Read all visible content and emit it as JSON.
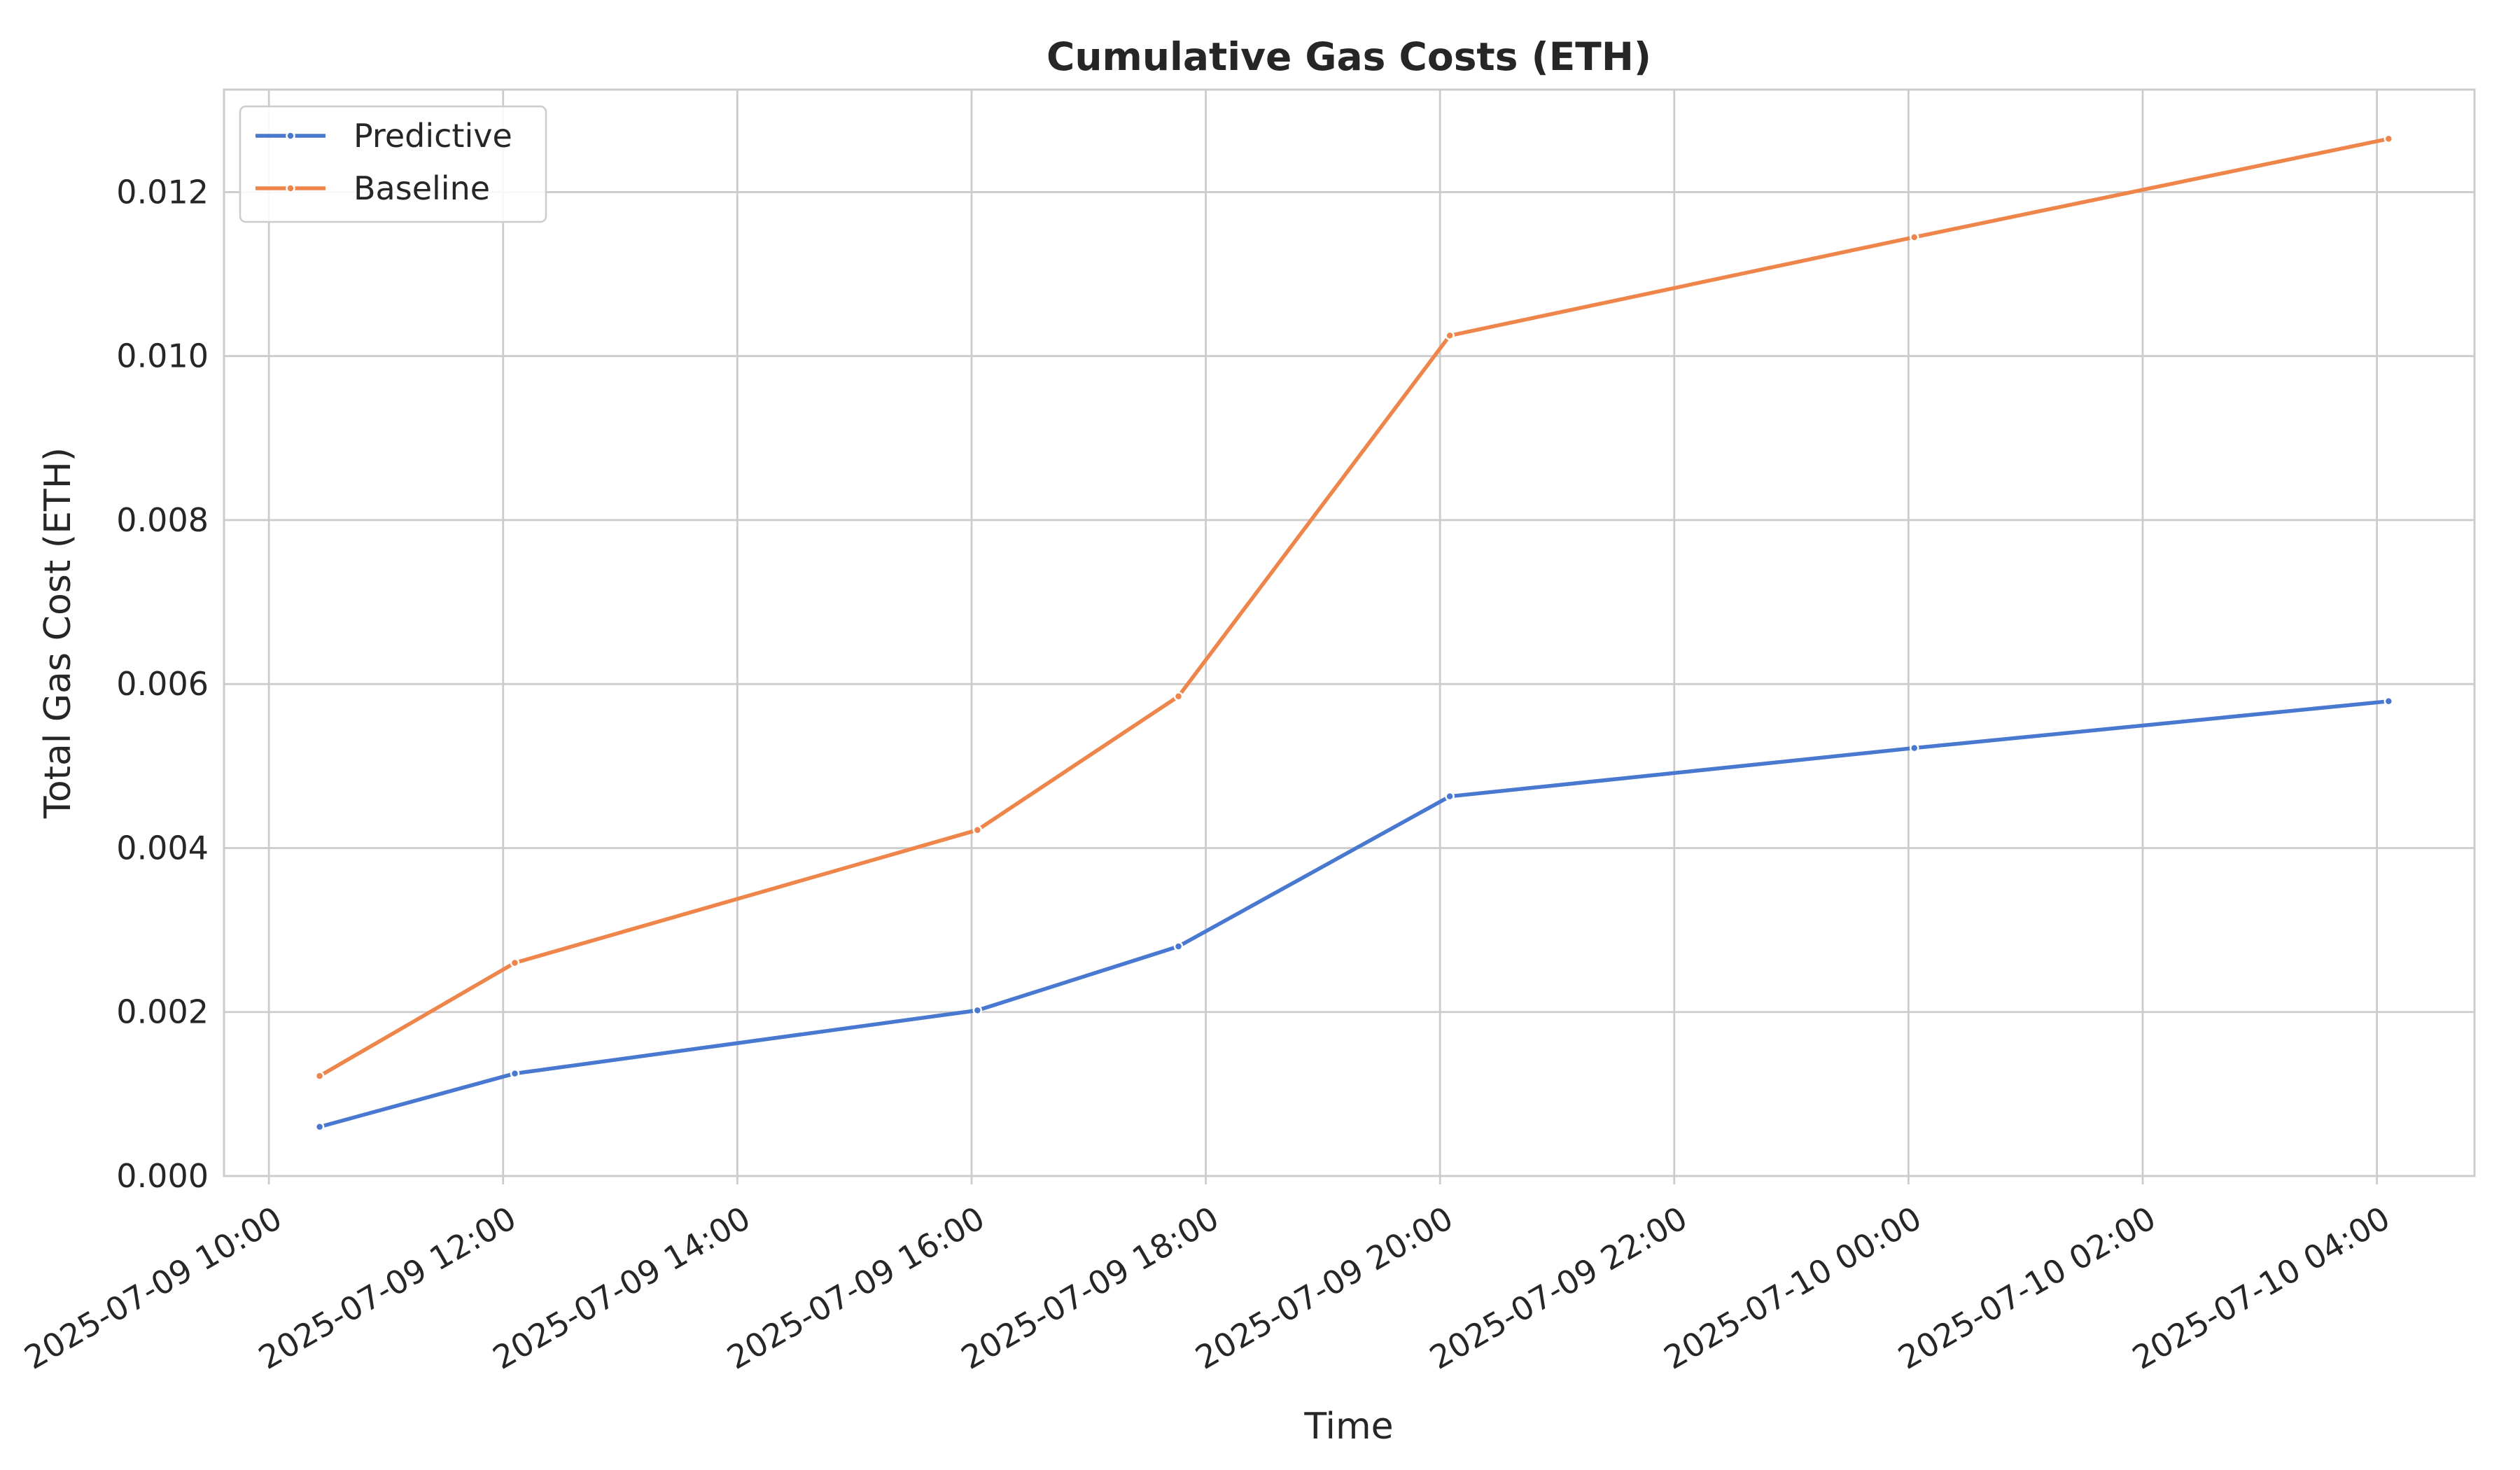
{
  "chart_data": {
    "type": "line",
    "title": "Cumulative Gas Costs (ETH)",
    "xlabel": "Time",
    "ylabel": "Total Gas Cost (ETH)",
    "x_ticks": [
      "2025-07-09 10:00",
      "2025-07-09 12:00",
      "2025-07-09 14:00",
      "2025-07-09 16:00",
      "2025-07-09 18:00",
      "2025-07-09 20:00",
      "2025-07-09 22:00",
      "2025-07-10 00:00",
      "2025-07-10 02:00",
      "2025-07-10 04:00"
    ],
    "y_ticks": [
      "0.000",
      "0.002",
      "0.004",
      "0.006",
      "0.008",
      "0.010",
      "0.012"
    ],
    "xlim": [
      "2025-07-09 09:37",
      "2025-07-10 04:50"
    ],
    "ylim": [
      0,
      0.01325
    ],
    "grid": true,
    "legend_position": "top-left",
    "x": [
      "2025-07-09 10:26",
      "2025-07-09 12:06",
      "2025-07-09 16:03",
      "2025-07-09 17:46",
      "2025-07-09 20:05",
      "2025-07-10 00:03",
      "2025-07-10 04:06"
    ],
    "series": [
      {
        "name": "Predictive",
        "color": "#4878d0",
        "values": [
          0.0006,
          0.00125,
          0.00202,
          0.0028,
          0.00463,
          0.00522,
          0.00579
        ]
      },
      {
        "name": "Baseline",
        "color": "#ee854a",
        "values": [
          0.00122,
          0.0026,
          0.00422,
          0.00585,
          0.01025,
          0.01145,
          0.01265
        ]
      }
    ]
  }
}
